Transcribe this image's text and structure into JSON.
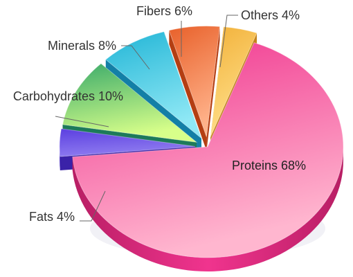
{
  "chart_data": {
    "type": "pie",
    "title": "",
    "style": "3d-exploded",
    "slices": [
      {
        "label": "Proteins",
        "value": 68,
        "text": "Proteins 68%",
        "color": "#f0348e",
        "light": "#ffb6cf",
        "dark": "#b81e64"
      },
      {
        "label": "Fats",
        "value": 4,
        "text": "Fats 4%",
        "color": "#5b3fe0",
        "light": "#8f7cf0",
        "dark": "#3a22a8"
      },
      {
        "label": "Carbohydrates",
        "value": 10,
        "text": "Carbohydrates 10%",
        "color": "#3aaa6a",
        "light": "#d8ff8a",
        "dark": "#1d7a5a"
      },
      {
        "label": "Minerals",
        "value": 8,
        "text": "Minerals 8%",
        "color": "#21b5d6",
        "light": "#8fe8f5",
        "dark": "#137fa6"
      },
      {
        "label": "Fibers",
        "value": 6,
        "text": "Fibers 6%",
        "color": "#e8602a",
        "light": "#ffb28a",
        "dark": "#b43e12"
      },
      {
        "label": "Others",
        "value": 4,
        "text": "Others 4%",
        "color": "#f2b13a",
        "light": "#ffe08a",
        "dark": "#c4841a"
      }
    ]
  }
}
